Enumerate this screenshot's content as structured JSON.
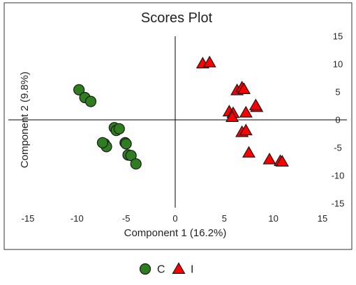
{
  "chart_data": {
    "type": "scatter",
    "title": "Scores Plot",
    "xlabel": "Component 1 (16.2%)",
    "ylabel": "Component 2 (9.8%)",
    "xlim": [
      -15,
      15
    ],
    "ylim": [
      -15,
      15
    ],
    "xticks": [
      -15,
      -10,
      -5,
      0,
      5,
      10,
      15
    ],
    "yticks": [
      15,
      10,
      5,
      0,
      -5,
      -10,
      -15
    ],
    "grid": false,
    "legend": "bottom-center",
    "series": [
      {
        "name": "C",
        "marker": "circle",
        "color": "#2e7d1e",
        "points": [
          {
            "x": -9.8,
            "y": 5.4
          },
          {
            "x": -9.2,
            "y": 4.0
          },
          {
            "x": -8.6,
            "y": 3.3
          },
          {
            "x": -6.2,
            "y": -1.4
          },
          {
            "x": -6.0,
            "y": -1.9
          },
          {
            "x": -5.7,
            "y": -1.6
          },
          {
            "x": -7.2,
            "y": -4.3
          },
          {
            "x": -7.0,
            "y": -4.8
          },
          {
            "x": -7.4,
            "y": -4.1
          },
          {
            "x": -5.1,
            "y": -4.1
          },
          {
            "x": -5.0,
            "y": -4.3
          },
          {
            "x": -4.8,
            "y": -6.3
          },
          {
            "x": -4.5,
            "y": -6.4
          },
          {
            "x": -4.0,
            "y": -7.9
          }
        ]
      },
      {
        "name": "I",
        "marker": "triangle",
        "color": "#ff0000",
        "points": [
          {
            "x": 2.8,
            "y": 10.1
          },
          {
            "x": 3.5,
            "y": 10.3
          },
          {
            "x": 6.3,
            "y": 5.3
          },
          {
            "x": 6.8,
            "y": 5.8
          },
          {
            "x": 7.0,
            "y": 5.5
          },
          {
            "x": 8.3,
            "y": 2.3
          },
          {
            "x": 8.2,
            "y": 2.6
          },
          {
            "x": 5.5,
            "y": 1.5
          },
          {
            "x": 5.9,
            "y": 1.2
          },
          {
            "x": 5.8,
            "y": 0.5
          },
          {
            "x": 7.2,
            "y": 1.3
          },
          {
            "x": 6.8,
            "y": -2.2
          },
          {
            "x": 7.2,
            "y": -1.9
          },
          {
            "x": 7.5,
            "y": -5.9
          },
          {
            "x": 9.6,
            "y": -7.1
          },
          {
            "x": 10.7,
            "y": -7.4
          },
          {
            "x": 10.9,
            "y": -7.5
          }
        ]
      }
    ]
  }
}
